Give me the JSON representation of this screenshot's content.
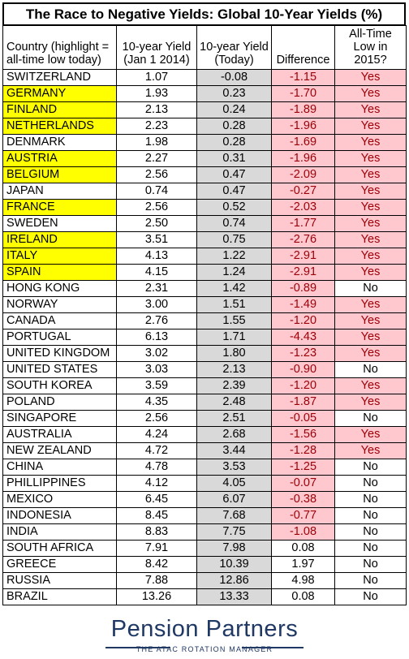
{
  "chart_data": {
    "type": "table",
    "title": "The Race to Negative Yields: Global 10-Year Yields (%)",
    "columns": [
      "Country (highlight = all-time low today)",
      "10-year Yield (Jan 1 2014)",
      "10-year Yield (Today)",
      "Difference",
      "All-Time Low in 2015?"
    ],
    "header_lines": [
      [
        "Country (highlight =",
        "all-time low today)"
      ],
      [
        "10-year Yield",
        "(Jan 1 2014)"
      ],
      [
        "10-year Yield",
        "(Today)"
      ],
      [
        "Difference"
      ],
      [
        "All-Time",
        "Low in",
        "2015?"
      ]
    ],
    "rows": [
      {
        "country": "SWITZERLAND",
        "jan2014": "1.07",
        "today": "-0.08",
        "diff": "-1.15",
        "low2015": "Yes",
        "highlight": false
      },
      {
        "country": "GERMANY",
        "jan2014": "1.93",
        "today": "0.23",
        "diff": "-1.70",
        "low2015": "Yes",
        "highlight": true
      },
      {
        "country": "FINLAND",
        "jan2014": "2.13",
        "today": "0.24",
        "diff": "-1.89",
        "low2015": "Yes",
        "highlight": true
      },
      {
        "country": "NETHERLANDS",
        "jan2014": "2.23",
        "today": "0.28",
        "diff": "-1.96",
        "low2015": "Yes",
        "highlight": true
      },
      {
        "country": "DENMARK",
        "jan2014": "1.98",
        "today": "0.28",
        "diff": "-1.69",
        "low2015": "Yes",
        "highlight": false
      },
      {
        "country": "AUSTRIA",
        "jan2014": "2.27",
        "today": "0.31",
        "diff": "-1.96",
        "low2015": "Yes",
        "highlight": true
      },
      {
        "country": "BELGIUM",
        "jan2014": "2.56",
        "today": "0.47",
        "diff": "-2.09",
        "low2015": "Yes",
        "highlight": true
      },
      {
        "country": "JAPAN",
        "jan2014": "0.74",
        "today": "0.47",
        "diff": "-0.27",
        "low2015": "Yes",
        "highlight": false
      },
      {
        "country": "FRANCE",
        "jan2014": "2.56",
        "today": "0.52",
        "diff": "-2.03",
        "low2015": "Yes",
        "highlight": true
      },
      {
        "country": "SWEDEN",
        "jan2014": "2.50",
        "today": "0.74",
        "diff": "-1.77",
        "low2015": "Yes",
        "highlight": false
      },
      {
        "country": "IRELAND",
        "jan2014": "3.51",
        "today": "0.75",
        "diff": "-2.76",
        "low2015": "Yes",
        "highlight": true
      },
      {
        "country": "ITALY",
        "jan2014": "4.13",
        "today": "1.22",
        "diff": "-2.91",
        "low2015": "Yes",
        "highlight": true
      },
      {
        "country": "SPAIN",
        "jan2014": "4.15",
        "today": "1.24",
        "diff": "-2.91",
        "low2015": "Yes",
        "highlight": true
      },
      {
        "country": "HONG KONG",
        "jan2014": "2.31",
        "today": "1.42",
        "diff": "-0.89",
        "low2015": "No",
        "highlight": false
      },
      {
        "country": "NORWAY",
        "jan2014": "3.00",
        "today": "1.51",
        "diff": "-1.49",
        "low2015": "Yes",
        "highlight": false
      },
      {
        "country": "CANADA",
        "jan2014": "2.76",
        "today": "1.55",
        "diff": "-1.20",
        "low2015": "Yes",
        "highlight": false
      },
      {
        "country": "PORTUGAL",
        "jan2014": "6.13",
        "today": "1.71",
        "diff": "-4.43",
        "low2015": "Yes",
        "highlight": false
      },
      {
        "country": "UNITED KINGDOM",
        "jan2014": "3.02",
        "today": "1.80",
        "diff": "-1.23",
        "low2015": "Yes",
        "highlight": false
      },
      {
        "country": "UNITED STATES",
        "jan2014": "3.03",
        "today": "2.13",
        "diff": "-0.90",
        "low2015": "No",
        "highlight": false
      },
      {
        "country": "SOUTH KOREA",
        "jan2014": "3.59",
        "today": "2.39",
        "diff": "-1.20",
        "low2015": "Yes",
        "highlight": false
      },
      {
        "country": "POLAND",
        "jan2014": "4.35",
        "today": "2.48",
        "diff": "-1.87",
        "low2015": "Yes",
        "highlight": false
      },
      {
        "country": "SINGAPORE",
        "jan2014": "2.56",
        "today": "2.51",
        "diff": "-0.05",
        "low2015": "No",
        "highlight": false
      },
      {
        "country": "AUSTRALIA",
        "jan2014": "4.24",
        "today": "2.68",
        "diff": "-1.56",
        "low2015": "Yes",
        "highlight": false
      },
      {
        "country": "NEW ZEALAND",
        "jan2014": "4.72",
        "today": "3.44",
        "diff": "-1.28",
        "low2015": "Yes",
        "highlight": false
      },
      {
        "country": "CHINA",
        "jan2014": "4.78",
        "today": "3.53",
        "diff": "-1.25",
        "low2015": "No",
        "highlight": false
      },
      {
        "country": "PHILLIPPINES",
        "jan2014": "4.12",
        "today": "4.05",
        "diff": "-0.07",
        "low2015": "No",
        "highlight": false
      },
      {
        "country": "MEXICO",
        "jan2014": "6.45",
        "today": "6.07",
        "diff": "-0.38",
        "low2015": "No",
        "highlight": false
      },
      {
        "country": "INDONESIA",
        "jan2014": "8.45",
        "today": "7.68",
        "diff": "-0.77",
        "low2015": "No",
        "highlight": false
      },
      {
        "country": "INDIA",
        "jan2014": "8.83",
        "today": "7.75",
        "diff": "-1.08",
        "low2015": "No",
        "highlight": false
      },
      {
        "country": "SOUTH AFRICA",
        "jan2014": "7.91",
        "today": "7.98",
        "diff": "0.08",
        "low2015": "No",
        "highlight": false
      },
      {
        "country": "GREECE",
        "jan2014": "8.42",
        "today": "10.39",
        "diff": "1.97",
        "low2015": "No",
        "highlight": false
      },
      {
        "country": "RUSSIA",
        "jan2014": "7.88",
        "today": "12.86",
        "diff": "4.98",
        "low2015": "No",
        "highlight": false
      },
      {
        "country": "BRAZIL",
        "jan2014": "13.26",
        "today": "13.33",
        "diff": "0.08",
        "low2015": "No",
        "highlight": false
      }
    ]
  },
  "colors": {
    "highlight": "#ffff00",
    "negative_fill": "#ffc7ce",
    "negative_text": "#9c0006",
    "today_fill": "#d9d9d9",
    "brand": "#1f3864"
  },
  "logo": {
    "name": "Pension Partners",
    "tagline": "THE ATAC ROTATION MANAGER"
  }
}
